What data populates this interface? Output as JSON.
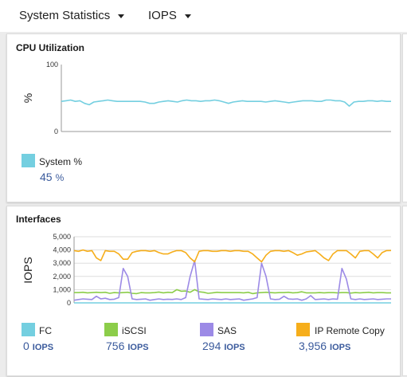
{
  "toolbar": {
    "statistics_dropdown": "System Statistics",
    "metric_dropdown": "IOPS"
  },
  "cpu_panel": {
    "title": "CPU Utilization",
    "ylabel": "%",
    "legend": [
      {
        "name": "System %",
        "value": "45",
        "unit": "%",
        "color": "#74cfe0"
      }
    ]
  },
  "interfaces_panel": {
    "title": "Interfaces",
    "ylabel": "IOPS",
    "legend": [
      {
        "name": "FC",
        "value": "0",
        "unit": "IOPS",
        "color": "#74cfe0"
      },
      {
        "name": "iSCSI",
        "value": "756",
        "unit": "IOPS",
        "color": "#8ccd4a"
      },
      {
        "name": "SAS",
        "value": "294",
        "unit": "IOPS",
        "color": "#9c8ae6"
      },
      {
        "name": "IP Remote Copy",
        "value": "3,956",
        "unit": "IOPS",
        "color": "#f6ae1b"
      }
    ]
  },
  "chart_data": [
    {
      "type": "line",
      "title": "CPU Utilization",
      "ylabel": "%",
      "ylim": [
        0,
        100
      ],
      "yticks": [
        "0",
        "100"
      ],
      "grid": false,
      "series": [
        {
          "name": "System %",
          "color": "#74cfe0",
          "values": [
            45,
            46,
            47,
            45,
            46,
            42,
            40,
            44,
            45,
            46,
            47,
            46,
            45,
            45,
            45,
            45,
            45,
            45,
            44,
            42,
            42,
            44,
            45,
            46,
            45,
            44,
            46,
            47,
            46,
            46,
            45,
            46,
            46,
            47,
            46,
            44,
            42,
            44,
            45,
            46,
            45,
            45,
            45,
            45,
            44,
            45,
            46,
            45,
            44,
            43,
            44,
            45,
            46,
            46,
            46,
            45,
            45,
            47,
            47,
            46,
            46,
            44,
            38,
            44,
            45,
            45,
            46,
            46,
            45,
            46,
            45,
            45
          ]
        }
      ]
    },
    {
      "type": "line",
      "title": "Interfaces",
      "ylabel": "IOPS",
      "ylim": [
        0,
        5000
      ],
      "yticks": [
        "0",
        "1,000",
        "2,000",
        "3,000",
        "4,000",
        "5,000"
      ],
      "grid": true,
      "series": [
        {
          "name": "FC",
          "color": "#74cfe0",
          "values": [
            0,
            0,
            0,
            0,
            0,
            0,
            0,
            0,
            0,
            0,
            0,
            0,
            0,
            0,
            0,
            0,
            0,
            0,
            0,
            0,
            0,
            0,
            0,
            0,
            0,
            0,
            0,
            0,
            0,
            0,
            0,
            0,
            0,
            0,
            0,
            0,
            0,
            0,
            0,
            0,
            0,
            0,
            0,
            0,
            0,
            0,
            0,
            0,
            0,
            0,
            0,
            0,
            0,
            0,
            0,
            0,
            0,
            0,
            0,
            0,
            0,
            0,
            0,
            0,
            0,
            0,
            0,
            0,
            0,
            0,
            0,
            0
          ]
        },
        {
          "name": "iSCSI",
          "color": "#8ccd4a",
          "values": [
            780,
            780,
            800,
            760,
            780,
            800,
            780,
            800,
            720,
            780,
            760,
            780,
            800,
            720,
            700,
            780,
            760,
            760,
            780,
            820,
            760,
            800,
            780,
            1000,
            880,
            900,
            800,
            1000,
            840,
            800,
            720,
            760,
            800,
            780,
            780,
            780,
            780,
            780,
            760,
            800,
            700,
            760,
            780,
            800,
            780,
            760,
            780,
            780,
            800,
            760,
            780,
            840,
            760,
            760,
            760,
            780,
            760,
            780,
            780,
            760,
            780,
            780,
            740,
            780,
            760,
            780,
            800,
            760,
            780,
            780,
            760,
            760
          ]
        },
        {
          "name": "SAS",
          "color": "#9c8ae6",
          "values": [
            200,
            250,
            300,
            280,
            250,
            500,
            300,
            350,
            250,
            280,
            400,
            2600,
            2000,
            300,
            250,
            280,
            300,
            200,
            250,
            300,
            250,
            280,
            260,
            300,
            250,
            400,
            2000,
            3200,
            300,
            280,
            250,
            300,
            280,
            250,
            300,
            250,
            280,
            300,
            200,
            250,
            300,
            400,
            3000,
            2000,
            300,
            250,
            280,
            500,
            300,
            280,
            300,
            200,
            300,
            550,
            250,
            280,
            300,
            250,
            300,
            280,
            2600,
            1800,
            300,
            250,
            300,
            250,
            280,
            300,
            250,
            280,
            300,
            300
          ]
        },
        {
          "name": "IP Remote Copy",
          "color": "#f6ae1b",
          "values": [
            3950,
            3900,
            4000,
            3900,
            3950,
            3400,
            3200,
            3950,
            3900,
            3900,
            3700,
            3300,
            3300,
            3800,
            3900,
            3950,
            3950,
            3900,
            3950,
            3800,
            3700,
            3700,
            3850,
            3950,
            3950,
            3800,
            3400,
            3100,
            3900,
            3950,
            3950,
            3900,
            3900,
            3950,
            3950,
            3900,
            3950,
            3950,
            3900,
            3900,
            3700,
            3400,
            3100,
            3600,
            3900,
            3950,
            3950,
            3900,
            3950,
            3800,
            3600,
            3700,
            3850,
            3900,
            3950,
            3700,
            3400,
            3200,
            3700,
            3950,
            3950,
            3950,
            3700,
            3400,
            3900,
            3950,
            3950,
            3700,
            3400,
            3800,
            3950,
            3956
          ]
        }
      ]
    }
  ]
}
